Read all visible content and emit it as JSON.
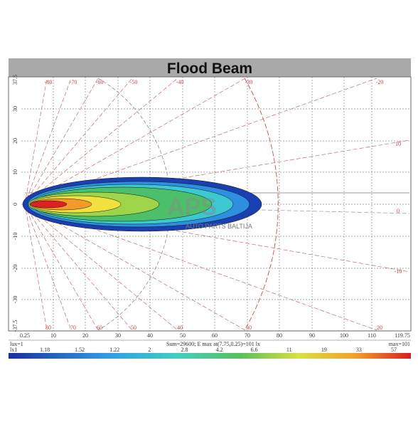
{
  "title": "Flood Beam",
  "x_labels": [
    "0.25",
    "10",
    "20",
    "30",
    "40",
    "50",
    "60",
    "70",
    "80",
    "90",
    "100",
    "110",
    "119.75"
  ],
  "y_labels": [
    "37.5",
    "30",
    "20",
    "10",
    "0",
    "-10",
    "-20",
    "-30",
    "-37.5"
  ],
  "angle_labels_top": [
    "-80",
    "-70",
    "-60",
    "-50",
    "-40",
    "-30",
    "-20"
  ],
  "angle_labels_bottom": [
    "80",
    "70",
    "60",
    "50",
    "40",
    "30",
    "20"
  ],
  "angle_labels_right": [
    "10",
    "0",
    "-10"
  ],
  "footer": {
    "left": "lux=1",
    "center": "Sum=29600; E max at(7.75,0.25)=101 lx",
    "right": "max=101"
  },
  "scale_labels": [
    "lx1",
    "1.18",
    "1.52",
    "1.22",
    "2",
    "2.8",
    "4.2",
    "6.6",
    "11",
    "19",
    "33",
    "57"
  ],
  "watermark": {
    "logo": "APS",
    "text": "AUTO PARTS BALTIJA"
  }
}
